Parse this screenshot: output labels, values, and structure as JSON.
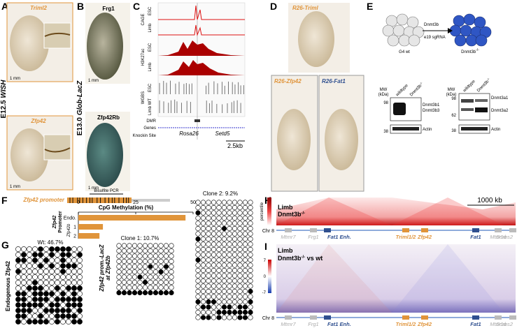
{
  "panel_a": {
    "label": "A",
    "top_gene": "Triml2",
    "bottom_gene": "Zfp42",
    "stage": "E12.5",
    "method": "WISH",
    "scale_top": "1 mm",
    "scale_bottom": "1 mm"
  },
  "panel_b": {
    "label": "B",
    "top_gene": "Frg1",
    "bottom_gene": "Zfp42Rb",
    "stage": "E13.0",
    "method": "Glob-LacZ",
    "scale_top": "1 mm",
    "scale_bottom": "1 mm"
  },
  "panel_c": {
    "label": "C",
    "tracks": [
      "CAGE",
      "H3K27ac",
      "WGBS"
    ],
    "cage_esc": "ESC",
    "cage_limb": "Limb",
    "h3_esc": "ESC",
    "h3_limb": "Limb",
    "wgbs_esc": "ESC",
    "wgbs_limb": "Limb WT",
    "dmr": "DMR",
    "genes": "Genes",
    "knockin": "Knockin Site",
    "gene_1": "Rosa26",
    "gene_2": "Setd5",
    "scale": "2.5kb"
  },
  "panel_d": {
    "label": "D",
    "top": "R26-Triml",
    "left": "R26-Zfp42",
    "right": "R26-Fat1"
  },
  "panel_e": {
    "label": "E",
    "parent": "G4 wt",
    "guide_1": "Dnmt3b",
    "guide_2": "e19 sgRNA",
    "mutant": "Dnmt3b",
    "mutant_sup": "-/-",
    "blot_1": {
      "mw": "MW",
      "mw_unit": "(kDa)",
      "lane_1": "wildtype",
      "lane_2": "Dnmt3b",
      "lane_2_sup": "-/-",
      "markers": [
        "98",
        "38"
      ],
      "bands": [
        "Dnmt3b1",
        "Dnmt3b3"
      ],
      "loading": "Actin"
    },
    "blot_2": {
      "mw": "MW",
      "mw_unit": "(kDa)",
      "lane_1": "wildtype",
      "lane_2": "Dnmt3b",
      "lane_2_sup": "-/-",
      "markers": [
        "98",
        "62",
        "38"
      ],
      "bands": [
        "Dnmt3a1",
        "Dnmt3a2"
      ],
      "loading": "Actin"
    }
  },
  "panel_f": {
    "label": "F",
    "promoter": "Zfp42 promoter",
    "pcr": "Bisulfite PCR",
    "chart_data": {
      "type": "bar",
      "title": "CpG Methylation (%)",
      "group_1": "Zfp42",
      "group_2": "Promoter",
      "subgroup": "Zfp42b",
      "categories": [
        "Endo.",
        "1",
        "2"
      ],
      "values": [
        46.7,
        10.7,
        9.2
      ],
      "color": "#e0943a",
      "xlim": [
        0,
        50
      ],
      "xticks": [
        0,
        25,
        50
      ]
    }
  },
  "panel_g": {
    "label": "G",
    "wt": "Wt: 46.7%",
    "wt_axis": "Endogenous Zfp42",
    "clone_1": "Clone 1: 10.7%",
    "clone_axis_1": "Zfp42 prom.-LacZ",
    "clone_axis_2": "at Zfp42b",
    "clone_2": "Clone 2: 9.2%"
  },
  "panel_h": {
    "label": "H",
    "title_1": "Limb",
    "title_2": "Dnmt3b",
    "title_2_sup": "-/-",
    "scale": "1000 kb",
    "colorbar": "percentile",
    "chrom": "Chr 8",
    "genes": [
      "Mtmr7",
      "Frg1",
      "Fat1 Enh.",
      "Triml1/2",
      "Zfp42",
      "Fat1",
      "Mtnr1a",
      "Sorbs2"
    ]
  },
  "panel_i": {
    "label": "I",
    "title_1": "Limb",
    "title_2": "Dnmt3b",
    "title_2_sup": "-/-",
    "title_3": "vs wt",
    "colorbar_ticks": [
      "7",
      "0",
      "-7"
    ],
    "chrom": "Chr 8",
    "genes": [
      "Mtmr7",
      "Frg1",
      "Fat1 Enh.",
      "Triml1/2",
      "Zfp42",
      "Fat1",
      "Mtnr1a",
      "Sorbs2"
    ]
  }
}
